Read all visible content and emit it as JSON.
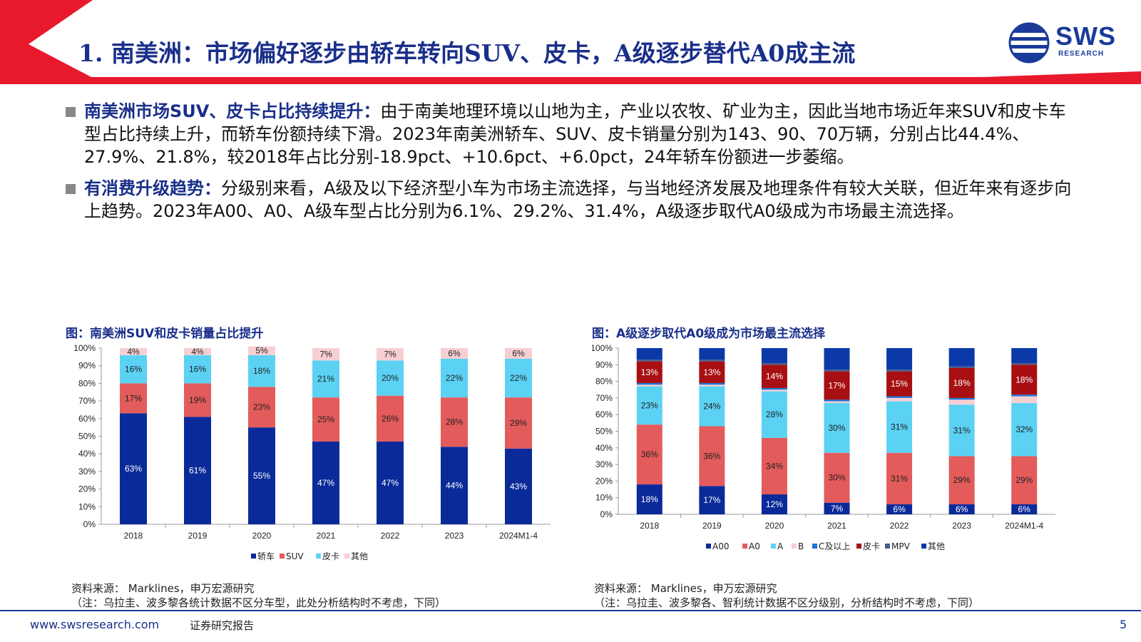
{
  "header": {
    "title": "1. 南美洲：市场偏好逐步由轿车转向SUV、皮卡，A级逐步替代A0成主流",
    "logo_text": "SWS",
    "logo_sub": "RESEARCH",
    "colors": {
      "accent_red": "#e8192c",
      "navy": "#1a2f8a"
    }
  },
  "bullets": [
    {
      "bold": "南美洲市场SUV、皮卡占比持续提升：",
      "text": "由于南美地理环境以山地为主，产业以农牧、矿业为主，因此当地市场近年来SUV和皮卡车型占比持续上升，而轿车份额持续下滑。2023年南美洲轿车、SUV、皮卡销量分别为143、90、70万辆，分别占比44.4%、27.9%、21.8%，较2018年占比分别-18.9pct、+10.6pct、+6.0pct，24年轿车份额进一步萎缩。"
    },
    {
      "bold": "有消费升级趋势：",
      "text": "分级别来看，A级及以下经济型小车为市场主流选择，与当地经济发展及地理条件有较大关联，但近年来有逐步向上趋势。2023年A00、A0、A级车型占比分别为6.1%、29.2%、31.4%，A级逐步取代A0级成为市场最主流选择。"
    }
  ],
  "charts_meta": [
    {
      "title": "图：南美洲SUV和皮卡销量占比提升",
      "source": "资料来源： Marklines，申万宏源研究",
      "note": "（注：乌拉圭、波多黎各统计数据不区分车型，此处分析结构时不考虑，下同）"
    },
    {
      "title": "图：A级逐步取代A0级成为市场最主流选择",
      "source": "资料来源： Marklines，申万宏源研究",
      "note": "（注：乌拉圭、波多黎各、智利统计数据不区分级别，分析结构时不考虑，下同）"
    }
  ],
  "chart_data": [
    {
      "type": "bar",
      "stacked": true,
      "categories": [
        "2018",
        "2019",
        "2020",
        "2021",
        "2022",
        "2023",
        "2024M1-4"
      ],
      "y_ticks": [
        "0%",
        "10%",
        "20%",
        "30%",
        "40%",
        "50%",
        "60%",
        "70%",
        "80%",
        "90%",
        "100%"
      ],
      "ylim": [
        0,
        100
      ],
      "legend_position": "bottom",
      "series": [
        {
          "name": "轿车",
          "color": "#0b2a9a",
          "label_color": "#ffffff",
          "values": [
            63,
            61,
            55,
            47,
            47,
            44,
            43
          ],
          "labels": [
            "63%",
            "61%",
            "55%",
            "47%",
            "47%",
            "44%",
            "43%"
          ]
        },
        {
          "name": "SUV",
          "color": "#e35b5b",
          "label_color": "#222222",
          "values": [
            17,
            19,
            23,
            25,
            26,
            28,
            29
          ],
          "labels": [
            "17%",
            "19%",
            "23%",
            "25%",
            "26%",
            "28%",
            "29%"
          ]
        },
        {
          "name": "皮卡",
          "color": "#5bd2f4",
          "label_color": "#222222",
          "values": [
            16,
            16,
            18,
            21,
            20,
            22,
            22
          ],
          "labels": [
            "16%",
            "16%",
            "18%",
            "21%",
            "20%",
            "22%",
            "22%"
          ]
        },
        {
          "name": "其他",
          "color": "#f7cfd3",
          "label_color": "#222222",
          "values": [
            4,
            4,
            5,
            7,
            7,
            6,
            6
          ],
          "labels": [
            "4%",
            "4%",
            "5%",
            "7%",
            "7%",
            "6%",
            "6%"
          ]
        }
      ]
    },
    {
      "type": "bar",
      "stacked": true,
      "categories": [
        "2018",
        "2019",
        "2020",
        "2021",
        "2022",
        "2023",
        "2024M1-4"
      ],
      "y_ticks": [
        "0%",
        "10%",
        "20%",
        "30%",
        "40%",
        "50%",
        "60%",
        "70%",
        "80%",
        "90%",
        "100%"
      ],
      "ylim": [
        0,
        100
      ],
      "legend_position": "bottom",
      "series": [
        {
          "name": "A00",
          "color": "#0b2a9a",
          "label_color": "#ffffff",
          "values": [
            18,
            17,
            12,
            7,
            6,
            6,
            6
          ],
          "labels": [
            "18%",
            "17%",
            "12%",
            "7%",
            "6%",
            "6%",
            "6%"
          ]
        },
        {
          "name": "A0",
          "color": "#e35b5b",
          "label_color": "#222222",
          "values": [
            36,
            36,
            34,
            30,
            31,
            29,
            29
          ],
          "labels": [
            "36%",
            "36%",
            "34%",
            "30%",
            "31%",
            "29%",
            "29%"
          ]
        },
        {
          "name": "A",
          "color": "#5bd2f4",
          "label_color": "#222222",
          "values": [
            23,
            24,
            28,
            30,
            31,
            31,
            32
          ],
          "labels": [
            "23%",
            "24%",
            "28%",
            "30%",
            "31%",
            "31%",
            "32%"
          ]
        },
        {
          "name": "B",
          "color": "#f7cfd3",
          "label_color": "#222222",
          "values": [
            1,
            1,
            1,
            1,
            2,
            3,
            4
          ],
          "labels": [
            "",
            "",
            "",
            "",
            "",
            "",
            ""
          ]
        },
        {
          "name": "C及以上",
          "color": "#1874d8",
          "label_color": "#ffffff",
          "values": [
            1,
            1,
            1,
            1,
            1,
            1,
            1
          ],
          "labels": [
            "",
            "",
            "",
            "",
            "",
            "",
            ""
          ]
        },
        {
          "name": "皮卡",
          "color": "#a80f12",
          "label_color": "#ffffff",
          "values": [
            13,
            13,
            14,
            17,
            15,
            18,
            18
          ],
          "labels": [
            "13%",
            "13%",
            "14%",
            "17%",
            "15%",
            "18%",
            "18%"
          ]
        },
        {
          "name": "MPV",
          "color": "#4b5a8c",
          "label_color": "#ffffff",
          "values": [
            1,
            1,
            1,
            1,
            1,
            1,
            1
          ],
          "labels": [
            "",
            "",
            "",
            "",
            "",
            "",
            ""
          ]
        },
        {
          "name": "其他",
          "color": "#0b3aa8",
          "label_color": "#ffffff",
          "values": [
            7,
            7,
            9,
            13,
            13,
            11,
            9
          ],
          "labels": [
            "",
            "",
            "",
            "",
            "",
            "",
            ""
          ]
        }
      ]
    }
  ],
  "footer": {
    "url": "www.swsresearch.com",
    "label": "证券研究报告",
    "page": "5"
  }
}
